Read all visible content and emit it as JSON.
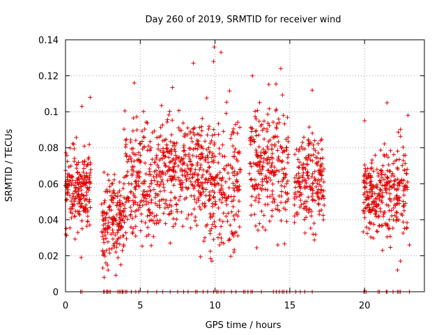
{
  "chart_data": {
    "type": "scatter",
    "title": "Day 260 of 2019, SRMTID for receiver wind",
    "xlabel": "GPS time / hours",
    "ylabel": "SRMTID / TECUs",
    "xlim": [
      0,
      24
    ],
    "ylim": [
      0,
      0.14
    ],
    "xticks": [
      0,
      5,
      10,
      15,
      20
    ],
    "xtick_labels": [
      "0",
      "5",
      "10",
      "15",
      "20"
    ],
    "yticks": [
      0,
      0.02,
      0.04,
      0.06,
      0.08,
      0.1,
      0.12,
      0.14
    ],
    "ytick_labels": [
      "0",
      "0.02",
      "0.04",
      "0.06",
      "0.08",
      "0.1",
      "0.12",
      "0.14"
    ],
    "grid": true,
    "marker": "+",
    "color": "#e00000",
    "series": [
      {
        "name": "SRMTID",
        "segments": [
          {
            "x_start": 0.0,
            "x_end": 1.7,
            "y_base": 0.058,
            "y_spread": 0.045,
            "count": 200
          },
          {
            "x_start": 2.4,
            "x_end": 3.9,
            "y_base": 0.04,
            "y_spread": 0.05,
            "count": 160
          },
          {
            "x_start": 3.9,
            "x_end": 6.4,
            "y_base": 0.062,
            "y_spread": 0.065,
            "count": 240
          },
          {
            "x_start": 6.4,
            "x_end": 9.0,
            "y_base": 0.068,
            "y_spread": 0.065,
            "count": 260
          },
          {
            "x_start": 9.0,
            "x_end": 11.7,
            "y_base": 0.062,
            "y_spread": 0.075,
            "count": 260
          },
          {
            "x_start": 12.3,
            "x_end": 14.9,
            "y_base": 0.068,
            "y_spread": 0.07,
            "count": 250
          },
          {
            "x_start": 15.3,
            "x_end": 17.3,
            "y_base": 0.062,
            "y_spread": 0.055,
            "count": 200
          },
          {
            "x_start": 19.9,
            "x_end": 21.1,
            "y_base": 0.054,
            "y_spread": 0.045,
            "count": 140
          },
          {
            "x_start": 21.1,
            "x_end": 22.9,
            "y_base": 0.056,
            "y_spread": 0.05,
            "count": 170
          }
        ],
        "zero_points": [
          1.0,
          1.1,
          2.55,
          2.6,
          2.75,
          2.8,
          2.9,
          3.0,
          3.5,
          3.6,
          3.7,
          3.8,
          3.85,
          4.0,
          4.1,
          4.4,
          4.7,
          4.9,
          5.5,
          6.1,
          6.5,
          7.0,
          7.5,
          7.9,
          8.2,
          8.7,
          8.8,
          9.2,
          9.5,
          9.9,
          10.1,
          10.2,
          10.4,
          10.6,
          11.1,
          11.4,
          11.9,
          12.0,
          12.2,
          12.4,
          12.5,
          13.1,
          13.9,
          14.1,
          14.3,
          14.5,
          14.6,
          14.8,
          15.0,
          15.4,
          15.7,
          16.0,
          16.5,
          19.95,
          20.0,
          20.1,
          20.9,
          21.0,
          21.45,
          21.5,
          21.9,
          22.2,
          22.3,
          22.4,
          23.0
        ],
        "highlights": [
          {
            "x": 9.95,
            "y": 0.136
          },
          {
            "x": 10.4,
            "y": 0.133
          },
          {
            "x": 8.55,
            "y": 0.127
          },
          {
            "x": 9.9,
            "y": 0.128
          },
          {
            "x": 14.4,
            "y": 0.124
          },
          {
            "x": 12.5,
            "y": 0.12
          },
          {
            "x": 4.6,
            "y": 0.116
          },
          {
            "x": 16.5,
            "y": 0.112
          },
          {
            "x": 1.65,
            "y": 0.108
          },
          {
            "x": 21.5,
            "y": 0.105
          },
          {
            "x": 1.1,
            "y": 0.103
          },
          {
            "x": 22.9,
            "y": 0.098
          },
          {
            "x": 20.0,
            "y": 0.095
          },
          {
            "x": 2.85,
            "y": 0.012
          },
          {
            "x": 22.2,
            "y": 0.012
          },
          {
            "x": 2.7,
            "y": 0.016
          },
          {
            "x": 3.7,
            "y": 0.015
          },
          {
            "x": 22.4,
            "y": 0.017
          },
          {
            "x": 1.05,
            "y": 0.019
          },
          {
            "x": 21.2,
            "y": 0.023
          },
          {
            "x": 10.3,
            "y": 0.026
          },
          {
            "x": 23.0,
            "y": 0.026
          },
          {
            "x": 14.2,
            "y": 0.026
          }
        ]
      }
    ]
  }
}
